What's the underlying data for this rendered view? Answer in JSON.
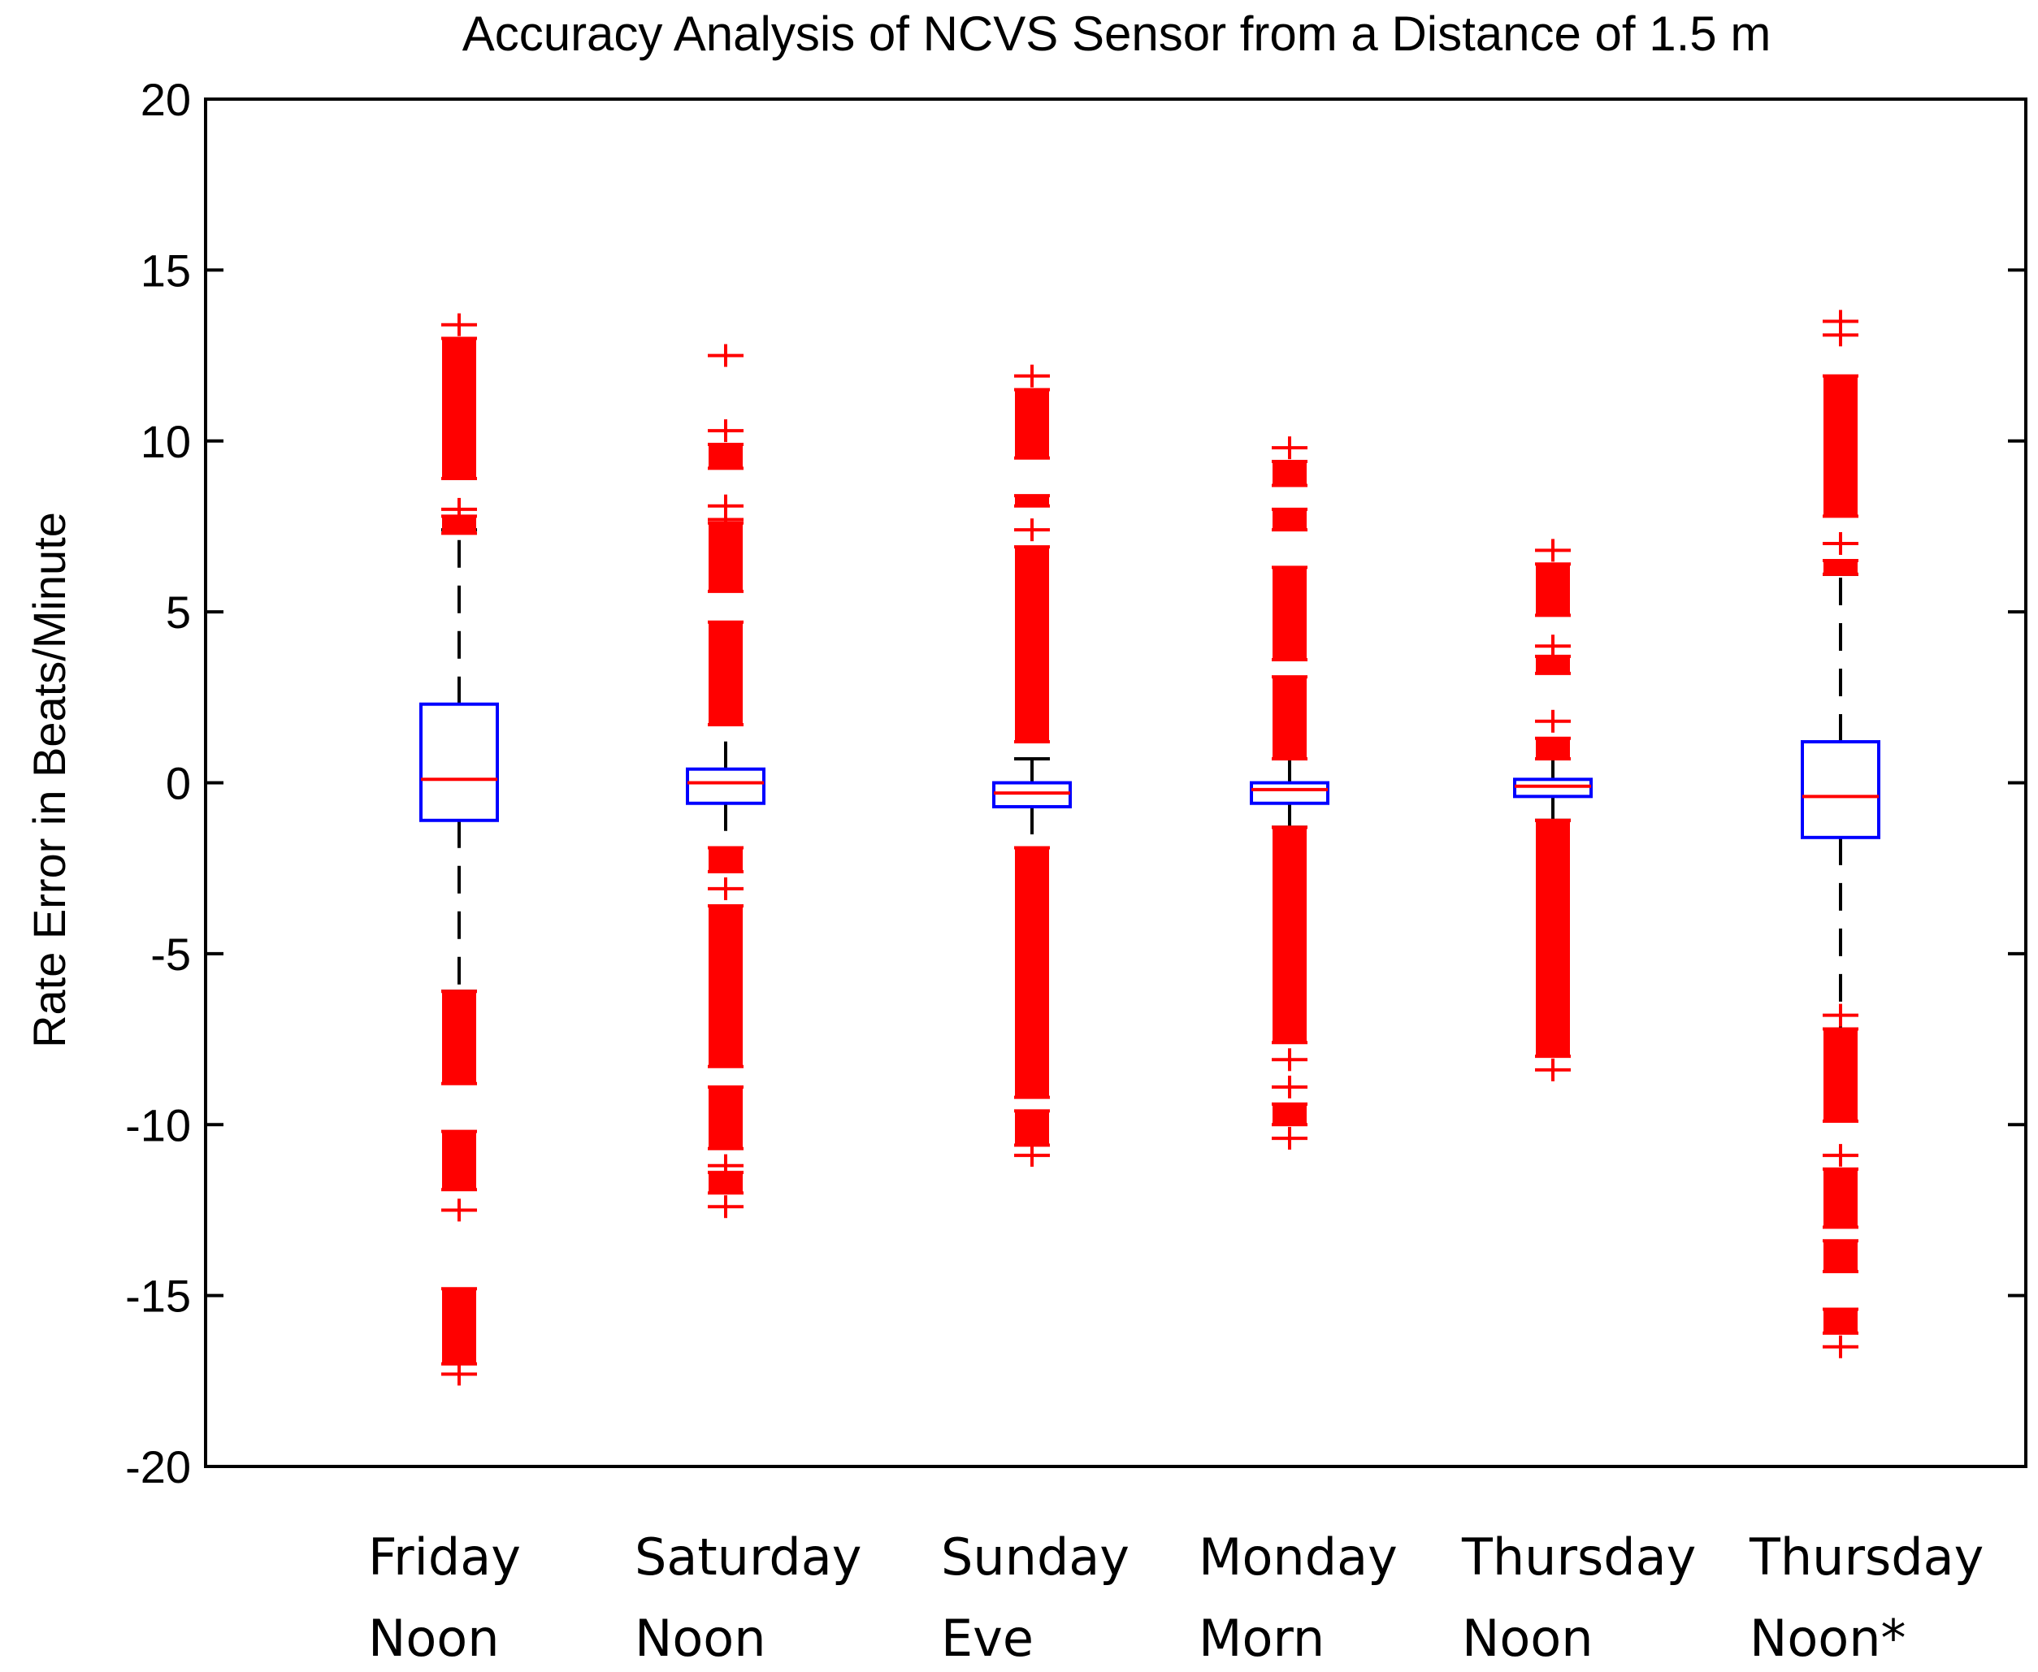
{
  "chart_data": {
    "type": "boxplot",
    "title": "Accuracy Analysis of NCVS Sensor from a Distance of 1.5 m",
    "xlabel": "",
    "ylabel": "Rate Error in Beats/Minute",
    "ylim": [
      -20,
      20
    ],
    "yticks": [
      20,
      15,
      10,
      5,
      0,
      -5,
      -10,
      -15,
      -20
    ],
    "ytick_labels": [
      "20",
      "15",
      "10",
      "5",
      "0",
      "-5",
      "-10",
      "-15",
      "-20"
    ],
    "grid": false,
    "colors": {
      "box": "#0000ff",
      "median": "#ff0000",
      "whisker": "#000000",
      "outlier": "#ff0000",
      "frame": "#000000"
    },
    "categories": [
      {
        "line1": "Friday",
        "line2": "Noon"
      },
      {
        "line1": "Saturday",
        "line2": "Noon"
      },
      {
        "line1": "Sunday",
        "line2": "Eve"
      },
      {
        "line1": "Monday",
        "line2": "Morn"
      },
      {
        "line1": "Thursday",
        "line2": "Noon"
      },
      {
        "line1": "Thursday",
        "line2": "Noon*"
      }
    ],
    "boxes": [
      {
        "q1": -1.1,
        "median": 0.1,
        "q3": 2.3,
        "whisker_low": -6.1,
        "whisker_high": 7.4,
        "outlier_bands": [
          [
            8.9,
            13.0
          ],
          [
            7.3,
            7.8
          ],
          [
            -8.8,
            -6.1
          ],
          [
            -11.9,
            -10.2
          ],
          [
            -17.0,
            -14.8
          ]
        ],
        "outlier_points": [
          13.4,
          8.0,
          -12.5,
          -17.3
        ]
      },
      {
        "q1": -0.6,
        "median": 0.0,
        "q3": 0.4,
        "whisker_low": -1.9,
        "whisker_high": 1.7,
        "outlier_bands": [
          [
            1.7,
            4.7
          ],
          [
            5.6,
            7.6
          ],
          [
            9.2,
            9.9
          ],
          [
            -2.6,
            -1.9
          ],
          [
            -8.3,
            -3.6
          ],
          [
            -10.7,
            -8.9
          ],
          [
            -12.0,
            -11.4
          ]
        ],
        "outlier_points": [
          12.5,
          10.3,
          8.1,
          7.7,
          -3.1,
          -11.2,
          -12.4
        ]
      },
      {
        "q1": -0.7,
        "median": -0.3,
        "q3": 0.0,
        "whisker_low": -1.9,
        "whisker_high": 0.7,
        "outlier_bands": [
          [
            1.2,
            6.9
          ],
          [
            9.5,
            11.5
          ],
          [
            8.1,
            8.4
          ],
          [
            -9.2,
            -1.9
          ],
          [
            -10.6,
            -9.6
          ]
        ],
        "outlier_points": [
          11.9,
          7.4,
          -10.9
        ]
      },
      {
        "q1": -0.6,
        "median": -0.2,
        "q3": 0.0,
        "whisker_low": -1.3,
        "whisker_high": 0.7,
        "outlier_bands": [
          [
            0.7,
            3.1
          ],
          [
            3.6,
            6.3
          ],
          [
            7.4,
            8.0
          ],
          [
            8.7,
            9.4
          ],
          [
            -7.6,
            -1.3
          ],
          [
            -10.0,
            -9.4
          ]
        ],
        "outlier_points": [
          9.8,
          -8.1,
          -8.9,
          -10.4
        ]
      },
      {
        "q1": -0.4,
        "median": -0.1,
        "q3": 0.1,
        "whisker_low": -1.1,
        "whisker_high": 0.7,
        "outlier_bands": [
          [
            0.7,
            1.3
          ],
          [
            3.2,
            3.7
          ],
          [
            4.9,
            6.4
          ],
          [
            -8.0,
            -1.1
          ]
        ],
        "outlier_points": [
          1.8,
          4.0,
          6.8,
          -8.4
        ]
      },
      {
        "q1": -1.6,
        "median": -0.4,
        "q3": 1.2,
        "whisker_low": -7.2,
        "whisker_high": 6.1,
        "outlier_bands": [
          [
            6.1,
            6.5
          ],
          [
            7.8,
            11.9
          ],
          [
            -9.9,
            -7.2
          ],
          [
            -13.0,
            -11.3
          ],
          [
            -14.3,
            -13.4
          ],
          [
            -16.1,
            -15.4
          ]
        ],
        "outlier_points": [
          13.1,
          13.5,
          7.0,
          -6.8,
          -10.9,
          -16.5
        ]
      }
    ]
  }
}
